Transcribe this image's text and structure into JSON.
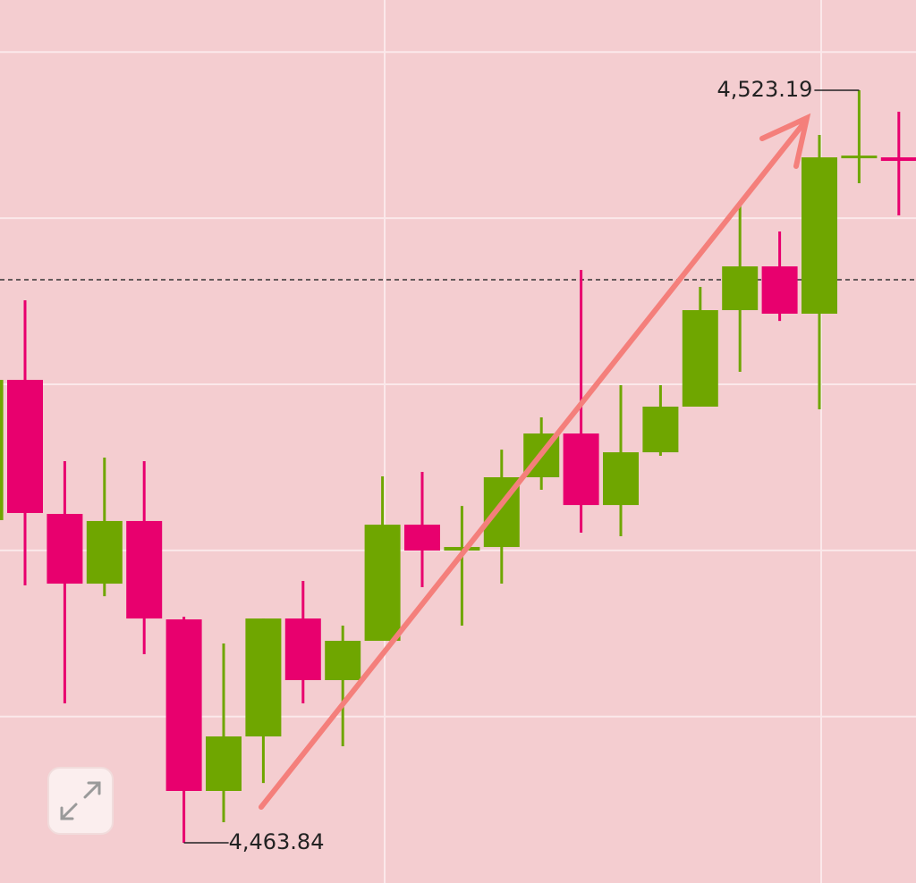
{
  "chart_data": {
    "type": "candlestick",
    "up_color": "#6fa600",
    "down_color": "#e8006e",
    "ylim": [
      4460.67,
      4530.31
    ],
    "ygrid": [
      4526.2,
      4513.1,
      4500.0,
      4486.9,
      4473.8
    ],
    "price_line": 4508.25,
    "candles": [
      {
        "open": 4489.29,
        "high": 4500.35,
        "low": 4489.29,
        "close": 4500.35
      },
      {
        "open": 4500.35,
        "high": 4506.63,
        "low": 4484.14,
        "close": 4489.85
      },
      {
        "open": 4489.78,
        "high": 4493.94,
        "low": 4474.84,
        "close": 4484.28
      },
      {
        "open": 4484.28,
        "high": 4494.22,
        "low": 4483.29,
        "close": 4489.22
      },
      {
        "open": 4489.22,
        "high": 4493.94,
        "low": 4478.71,
        "close": 4481.53
      },
      {
        "open": 4481.46,
        "high": 4481.67,
        "low": 4463.84,
        "close": 4467.93
      },
      {
        "open": 4467.93,
        "high": 4479.56,
        "low": 4465.46,
        "close": 4472.23
      },
      {
        "open": 4472.23,
        "high": 4481.53,
        "low": 4468.56,
        "close": 4481.53
      },
      {
        "open": 4481.53,
        "high": 4484.49,
        "low": 4474.84,
        "close": 4476.67
      },
      {
        "open": 4476.67,
        "high": 4480.97,
        "low": 4471.45,
        "close": 4479.77
      },
      {
        "open": 4479.77,
        "high": 4492.74,
        "low": 4479.77,
        "close": 4488.93
      },
      {
        "open": 4488.93,
        "high": 4493.09,
        "low": 4484.0,
        "close": 4486.89
      },
      {
        "open": 4486.89,
        "high": 4490.41,
        "low": 4480.97,
        "close": 4487.17
      },
      {
        "open": 4487.17,
        "high": 4494.85,
        "low": 4484.28,
        "close": 4492.67
      },
      {
        "open": 4492.67,
        "high": 4497.39,
        "low": 4491.68,
        "close": 4496.12
      },
      {
        "open": 4496.12,
        "high": 4509.02,
        "low": 4488.3,
        "close": 4490.48
      },
      {
        "open": 4490.48,
        "high": 4499.93,
        "low": 4488.02,
        "close": 4494.64
      },
      {
        "open": 4494.64,
        "high": 4499.93,
        "low": 4494.36,
        "close": 4498.24
      },
      {
        "open": 4498.24,
        "high": 4507.68,
        "low": 4498.24,
        "close": 4505.85
      },
      {
        "open": 4505.85,
        "high": 4514.1,
        "low": 4500.99,
        "close": 4509.3
      },
      {
        "open": 4509.3,
        "high": 4512.05,
        "low": 4505.0,
        "close": 4505.57
      },
      {
        "open": 4505.57,
        "high": 4519.67,
        "low": 4498.03,
        "close": 4517.9
      },
      {
        "open": 4517.9,
        "high": 4523.19,
        "low": 4515.86,
        "close": 4518.04
      },
      {
        "open": 4517.9,
        "high": 4521.5,
        "low": 4513.32,
        "close": 4517.62
      }
    ],
    "high_label": {
      "value": 4523.19,
      "label": "4,523.19"
    },
    "low_label": {
      "value": 4463.84,
      "label": "4,463.84"
    }
  }
}
